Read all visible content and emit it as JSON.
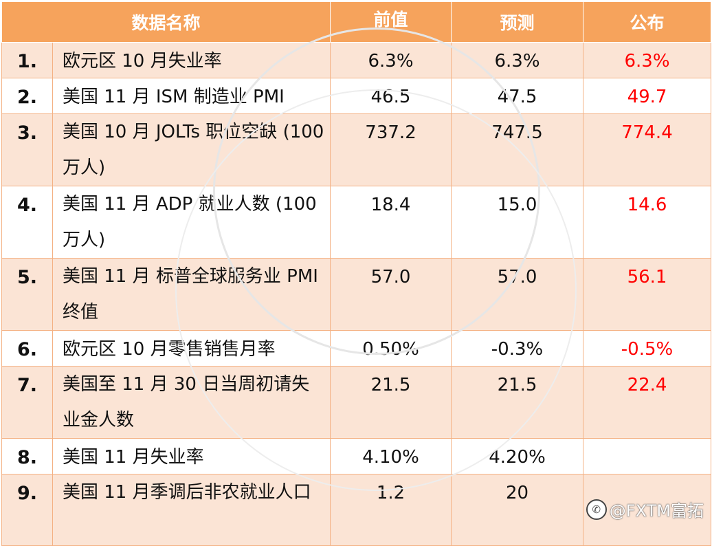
{
  "header": {
    "col_name": "数据名称",
    "col_prev": "前值",
    "col_forecast": "预测",
    "col_actual": "公布"
  },
  "rows": [
    {
      "num": "1.",
      "name": "欧元区 10 月失业率",
      "prev": "6.3%",
      "forecast": "6.3%",
      "actual": "6.3%"
    },
    {
      "num": "2.",
      "name": "美国 11 月 ISM 制造业 PMI",
      "prev": "46.5",
      "forecast": "47.5",
      "actual": "49.7"
    },
    {
      "num": "3.",
      "name": "美国 10 月 JOLTs 职位空缺 (100 万人)",
      "prev": "737.2",
      "forecast": "747.5",
      "actual": "774.4"
    },
    {
      "num": "4.",
      "name": "美国 11 月 ADP 就业人数 (100 万人)",
      "prev": "18.4",
      "forecast": "15.0",
      "actual": "14.6"
    },
    {
      "num": "5.",
      "name": "美国 11 月 标普全球服务业 PMI 终值",
      "prev": "57.0",
      "forecast": "57.0",
      "actual": "56.1"
    },
    {
      "num": "6.",
      "name": "欧元区 10 月零售销售月率",
      "prev": "0.50%",
      "forecast": "-0.3%",
      "actual": "-0.5%"
    },
    {
      "num": "7.",
      "name": "美国至 11 月 30 日当周初请失业金人数",
      "prev": "21.5",
      "forecast": "21.5",
      "actual": "22.4"
    },
    {
      "num": "8.",
      "name": "美国 11 月失业率",
      "prev": "4.10%",
      "forecast": "4.20%",
      "actual": ""
    },
    {
      "num": "9.",
      "name": "美国 11 月季调后非农就业人口",
      "prev": "1.2",
      "forecast": "20",
      "actual": ""
    }
  ],
  "watermark": {
    "text": "@FXTM富拓",
    "logo_icon": "weibo-logo-icon"
  },
  "colors": {
    "header_bg": "#f6a35c",
    "row_alt_bg": "#fbe4d5",
    "border": "#f4b183",
    "actual_text": "#ff0000"
  }
}
